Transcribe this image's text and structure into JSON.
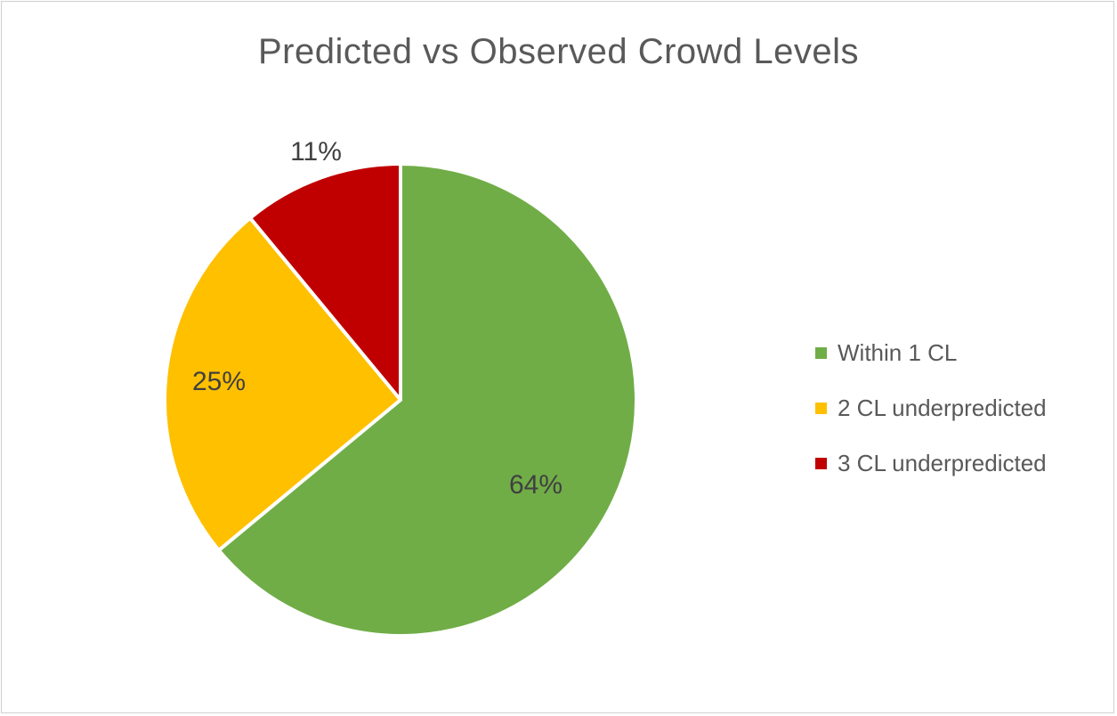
{
  "chart_data": {
    "type": "pie",
    "title": "Predicted vs Observed Crowd Levels",
    "categories": [
      "Within 1 CL",
      "2 CL underpredicted",
      "3 CL underpredicted"
    ],
    "values": [
      64,
      25,
      11
    ],
    "data_labels": [
      "64%",
      "25%",
      "11%"
    ],
    "colors": [
      "#70AD47",
      "#FFC000",
      "#C00000"
    ],
    "legend_position": "right",
    "start_angle_deg": 0,
    "direction": "clockwise"
  }
}
